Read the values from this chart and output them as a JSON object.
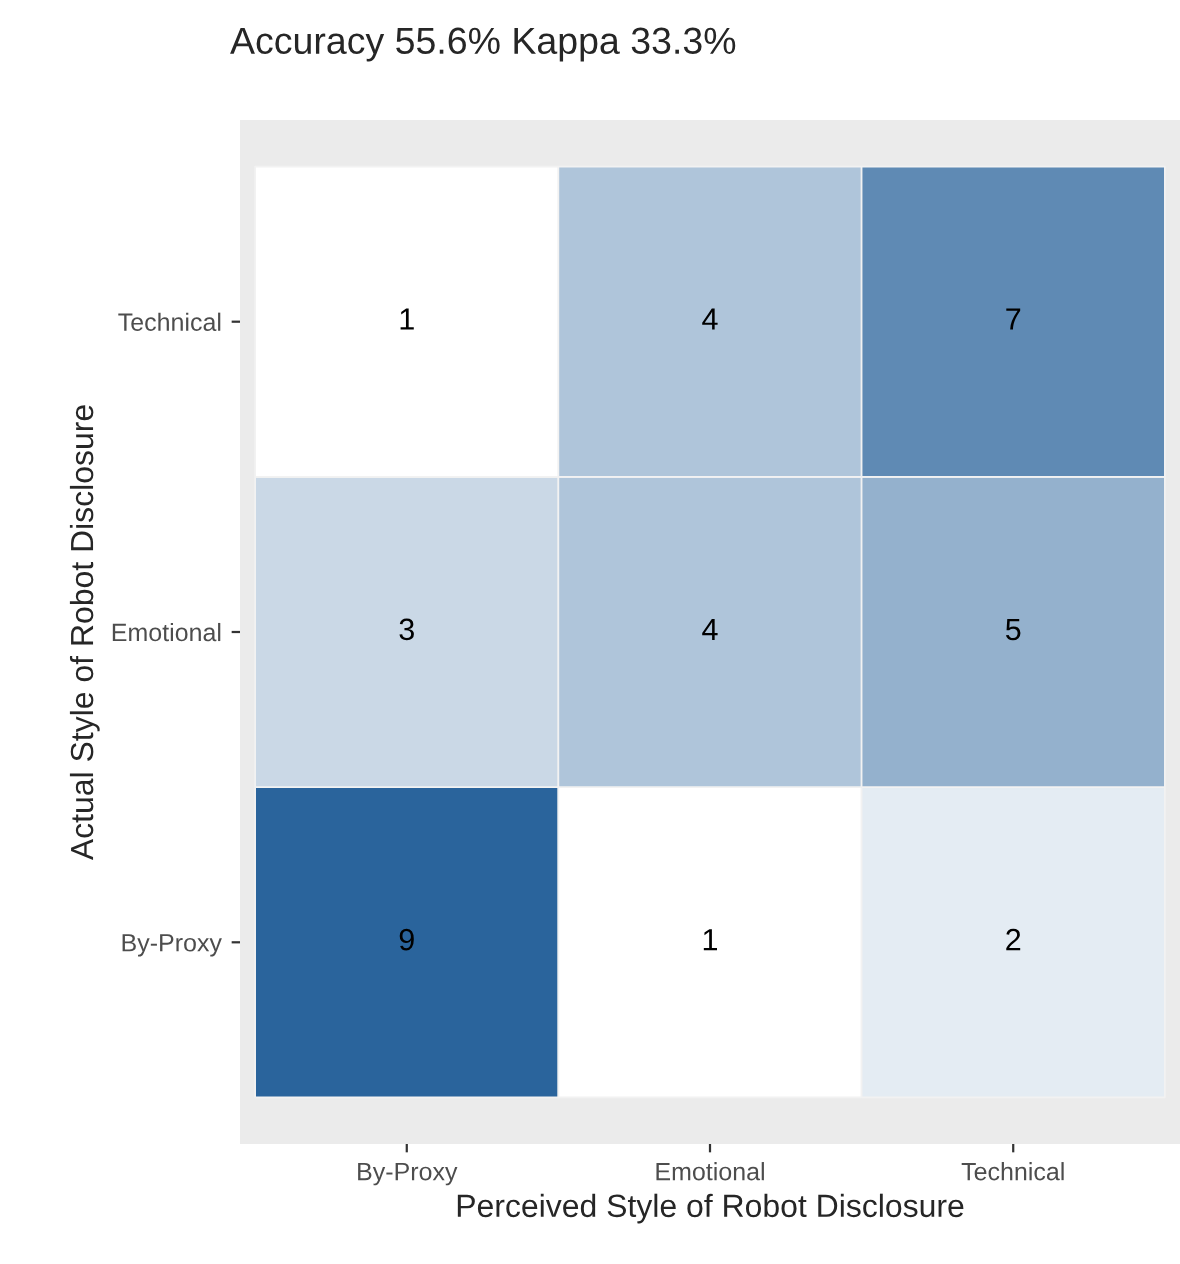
{
  "chart_data": {
    "type": "heatmap",
    "title": "Accuracy 55.6% Kappa 33.3%",
    "xlabel": "Perceived Style of Robot Disclosure",
    "ylabel": "Actual Style of Robot Disclosure",
    "categories": [
      "By-Proxy",
      "Emotional",
      "Technical"
    ],
    "y_categories": [
      "Technical",
      "Emotional",
      "By-Proxy"
    ],
    "cells": [
      [
        1,
        4,
        7
      ],
      [
        3,
        4,
        5
      ],
      [
        9,
        1,
        2
      ]
    ],
    "data_labels": true
  }
}
